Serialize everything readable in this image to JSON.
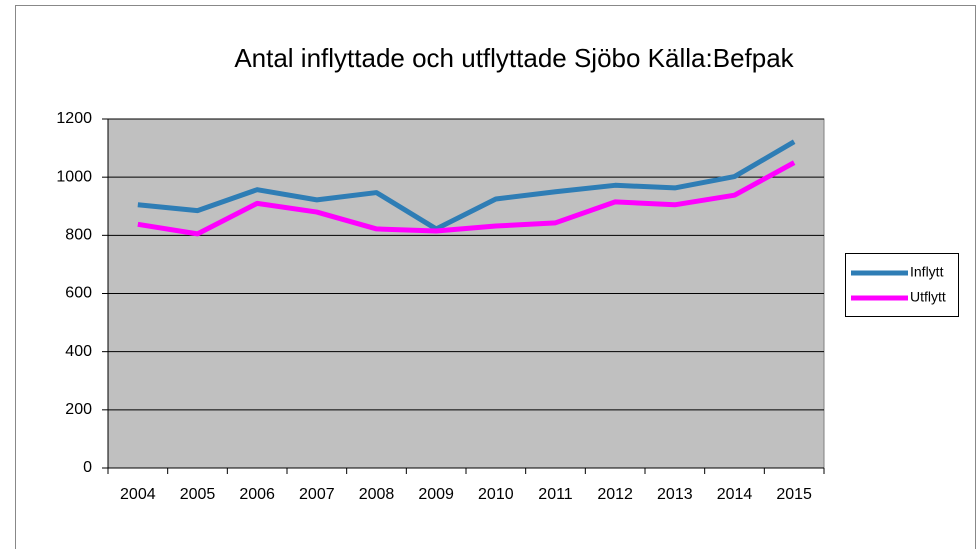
{
  "chart_data": {
    "type": "line",
    "title": "Antal inflyttade och utflyttade Sjöbo Källa:Befpak",
    "categories": [
      "2004",
      "2005",
      "2006",
      "2007",
      "2008",
      "2009",
      "2010",
      "2011",
      "2012",
      "2013",
      "2014",
      "2015"
    ],
    "series": [
      {
        "name": "Inflytt",
        "color": "#2e7db5",
        "values": [
          905,
          885,
          957,
          922,
          947,
          822,
          925,
          950,
          972,
          963,
          1002,
          1122
        ]
      },
      {
        "name": "Utflytt",
        "color": "#ff00ff",
        "values": [
          838,
          805,
          910,
          880,
          822,
          815,
          832,
          843,
          915,
          905,
          938,
          1050
        ]
      }
    ],
    "ylim": [
      0,
      1200
    ],
    "yticks": [
      0,
      200,
      400,
      600,
      800,
      1000,
      1200
    ],
    "grid": true,
    "legend": "right"
  }
}
